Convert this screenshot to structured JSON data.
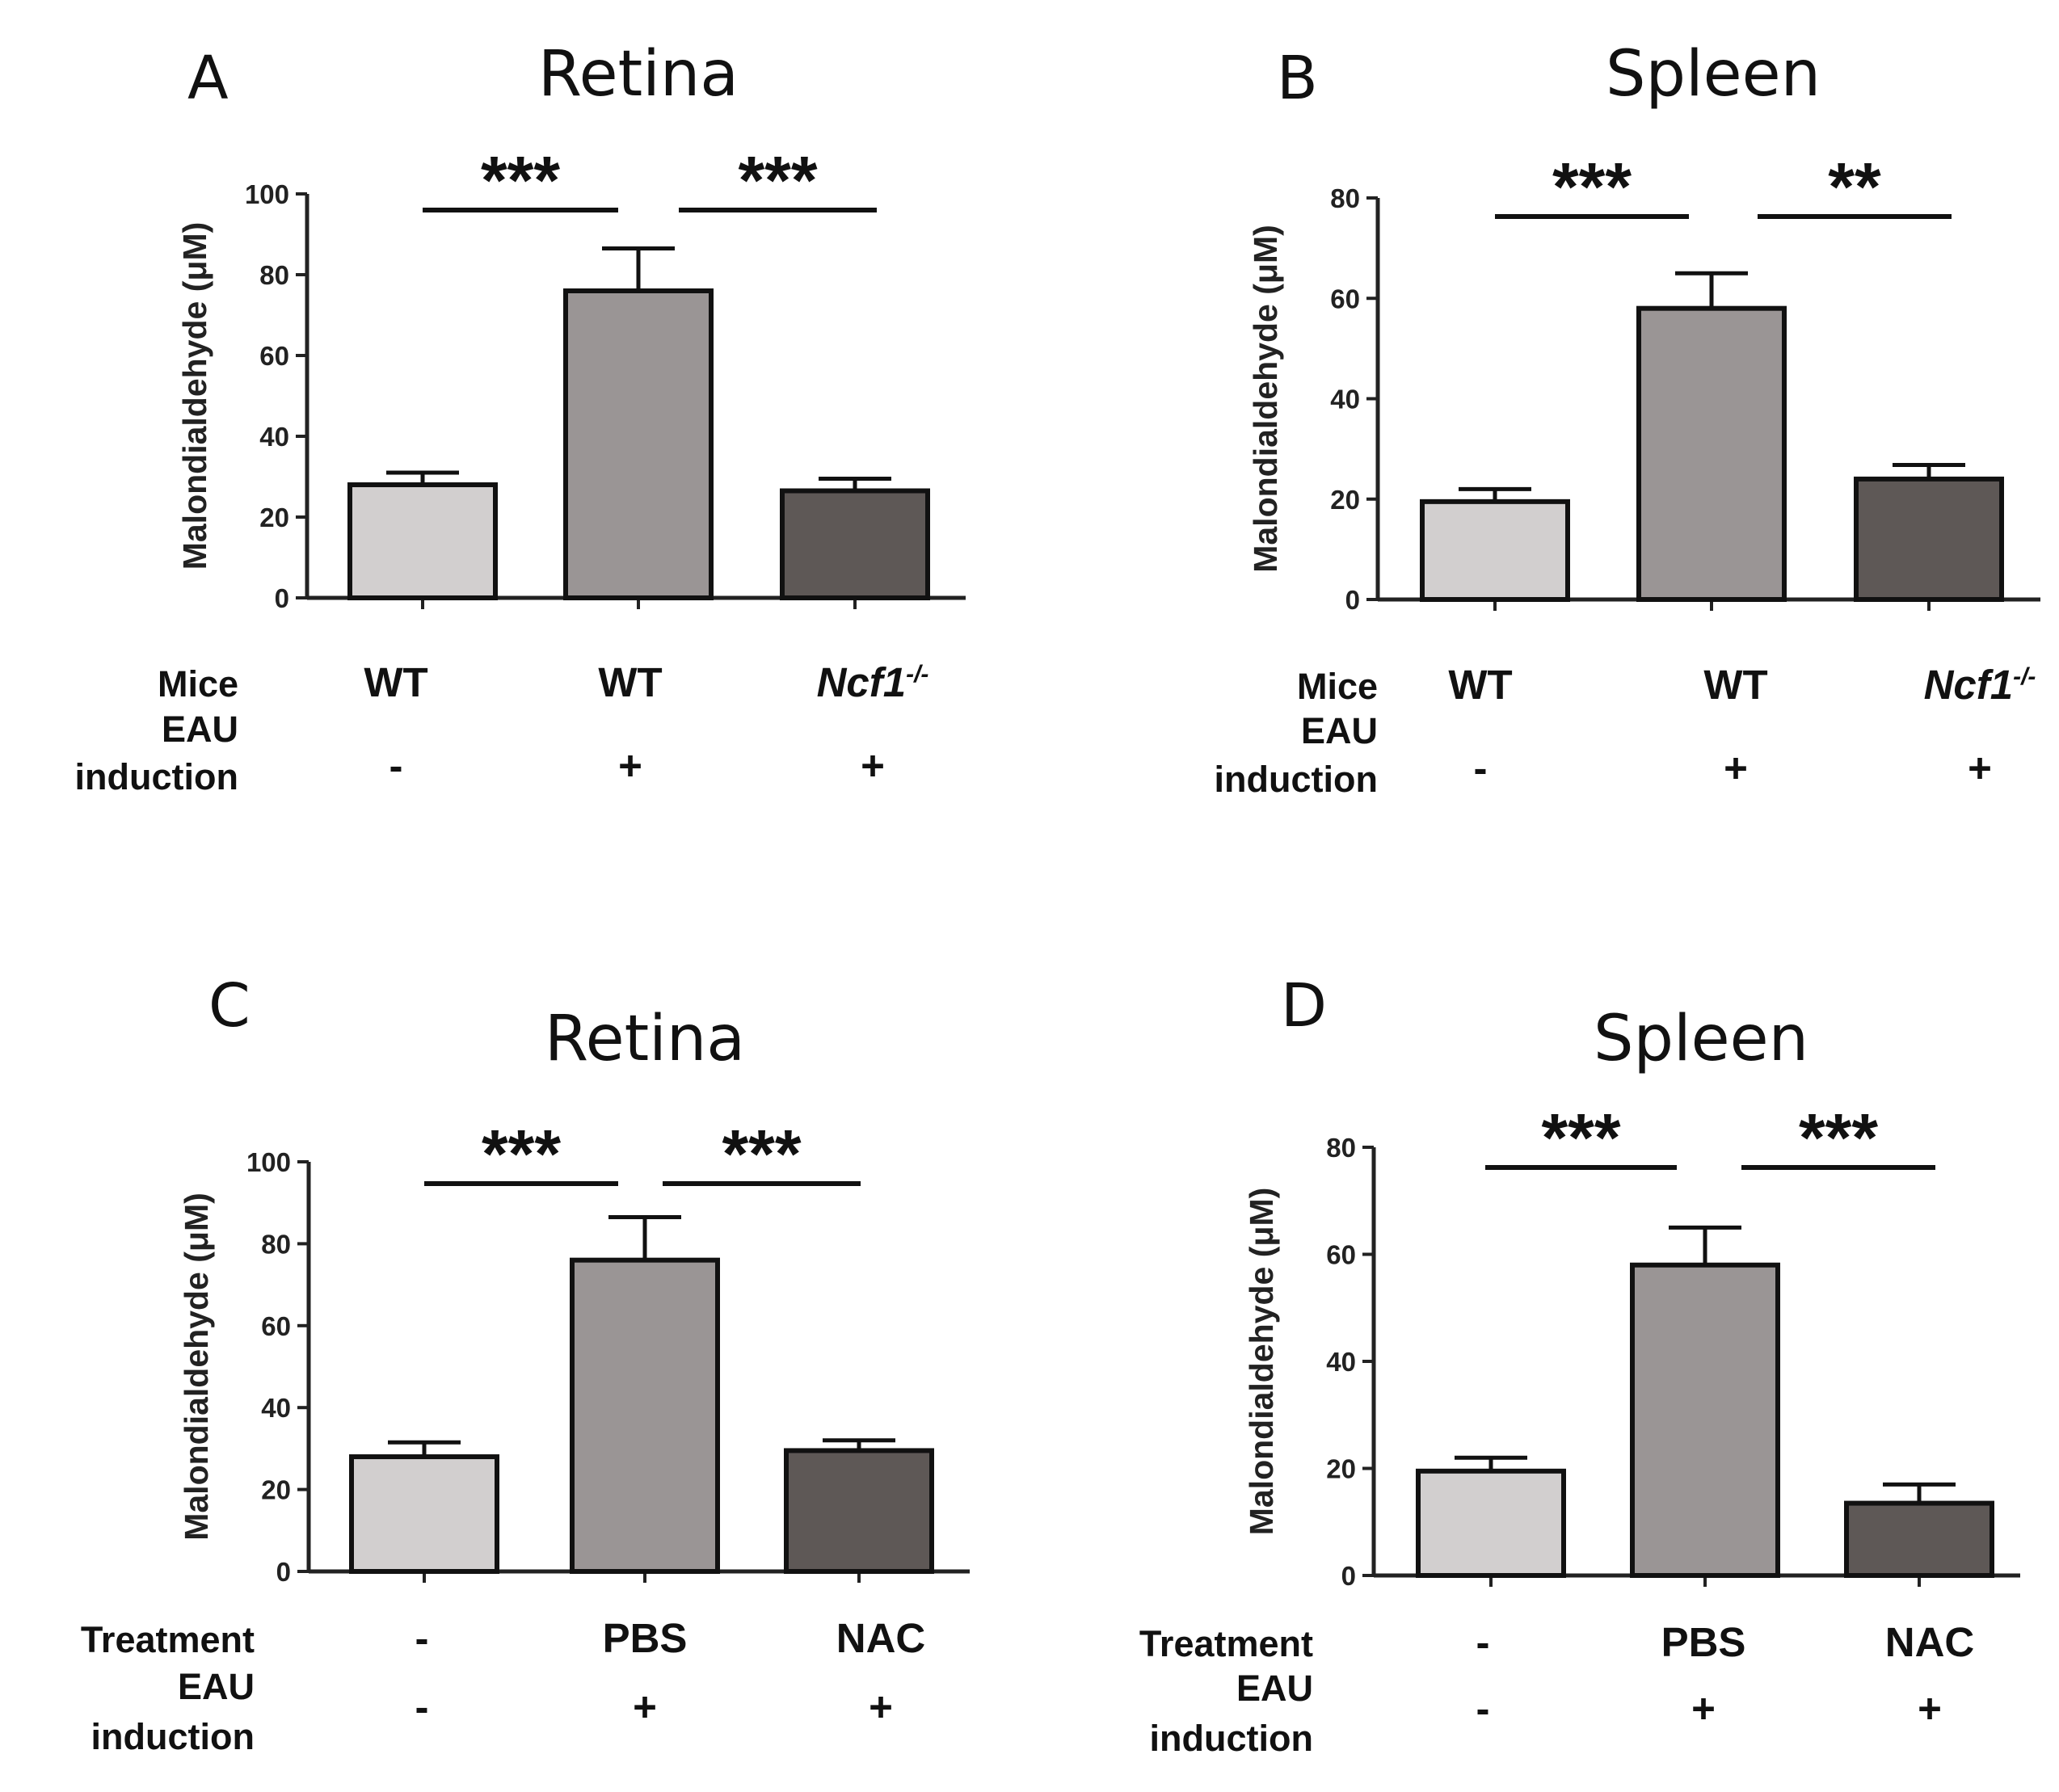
{
  "chart_data": [
    {
      "type": "bar",
      "panel": "A",
      "title": "Retina",
      "ylabel": "Malondialdehyde (μM)",
      "ylim": [
        0,
        100
      ],
      "yticks": [
        "0",
        "20",
        "40",
        "60",
        "80",
        "100"
      ],
      "ytick_values": [
        0,
        20,
        40,
        60,
        80,
        100
      ],
      "values": [
        28,
        76,
        26.5
      ],
      "errors": [
        3,
        10.5,
        3
      ],
      "colors": [
        "#d2cfcf",
        "#9a9595",
        "#5e5856"
      ],
      "table": [
        {
          "label": "Mice",
          "cells": [
            {
              "text": "WT"
            },
            {
              "text": "WT"
            },
            {
              "text": "Ncf1",
              "sup": "-/-",
              "italic": true
            }
          ]
        },
        {
          "label_lines": [
            "EAU",
            "induction"
          ],
          "cells": [
            {
              "text": "-"
            },
            {
              "text": "+"
            },
            {
              "text": "+"
            }
          ]
        }
      ],
      "significance": [
        {
          "from": 0,
          "to": 1,
          "label": "***"
        },
        {
          "from": 1,
          "to": 2,
          "label": "***"
        }
      ]
    },
    {
      "type": "bar",
      "panel": "B",
      "title": "Spleen",
      "ylabel": "Malondialdehyde (μM)",
      "ylim": [
        0,
        80
      ],
      "yticks": [
        "0",
        "20",
        "40",
        "60",
        "80"
      ],
      "ytick_values": [
        0,
        20,
        40,
        60,
        80
      ],
      "values": [
        19.5,
        58,
        24
      ],
      "errors": [
        2.5,
        7,
        2.8
      ],
      "colors": [
        "#d2cfcf",
        "#9a9595",
        "#5e5856"
      ],
      "table": [
        {
          "label": "Mice",
          "cells": [
            {
              "text": "WT"
            },
            {
              "text": "WT"
            },
            {
              "text": "Ncf1",
              "sup": "-/-",
              "italic": true
            }
          ]
        },
        {
          "label_lines": [
            "EAU",
            "induction"
          ],
          "cells": [
            {
              "text": "-"
            },
            {
              "text": "+"
            },
            {
              "text": "+"
            }
          ]
        }
      ],
      "significance": [
        {
          "from": 0,
          "to": 1,
          "label": "***"
        },
        {
          "from": 1,
          "to": 2,
          "label": "**"
        }
      ]
    },
    {
      "type": "bar",
      "panel": "C",
      "title": "Retina",
      "ylabel": "Malondialdehyde (μM)",
      "ylim": [
        0,
        100
      ],
      "yticks": [
        "0",
        "20",
        "40",
        "60",
        "80",
        "100"
      ],
      "ytick_values": [
        0,
        20,
        40,
        60,
        80,
        100
      ],
      "values": [
        28,
        76,
        29.5
      ],
      "errors": [
        3.5,
        10.5,
        2.5
      ],
      "colors": [
        "#d2cfcf",
        "#9a9595",
        "#5e5856"
      ],
      "table": [
        {
          "label": "Treatment",
          "cells": [
            {
              "text": "-"
            },
            {
              "text": "PBS"
            },
            {
              "text": "NAC"
            }
          ]
        },
        {
          "label_lines": [
            "EAU",
            "induction"
          ],
          "cells": [
            {
              "text": "-"
            },
            {
              "text": "+"
            },
            {
              "text": "+"
            }
          ]
        }
      ],
      "significance": [
        {
          "from": 0,
          "to": 1,
          "label": "***"
        },
        {
          "from": 1,
          "to": 2,
          "label": "***"
        }
      ]
    },
    {
      "type": "bar",
      "panel": "D",
      "title": "Spleen",
      "ylabel": "Malondialdehyde (μM)",
      "ylim": [
        0,
        80
      ],
      "yticks": [
        "0",
        "20",
        "40",
        "60",
        "80"
      ],
      "ytick_values": [
        0,
        20,
        40,
        60,
        80
      ],
      "values": [
        19.5,
        58,
        13.5
      ],
      "errors": [
        2.5,
        7,
        3.5
      ],
      "colors": [
        "#d2cfcf",
        "#9a9595",
        "#5e5856"
      ],
      "table": [
        {
          "label": "Treatment",
          "cells": [
            {
              "text": "-"
            },
            {
              "text": "PBS"
            },
            {
              "text": "NAC"
            }
          ]
        },
        {
          "label_lines": [
            "EAU",
            "induction"
          ],
          "cells": [
            {
              "text": "-"
            },
            {
              "text": "+"
            },
            {
              "text": "+"
            }
          ]
        }
      ],
      "significance": [
        {
          "from": 0,
          "to": 1,
          "label": "***"
        },
        {
          "from": 1,
          "to": 2,
          "label": "***"
        }
      ]
    }
  ]
}
